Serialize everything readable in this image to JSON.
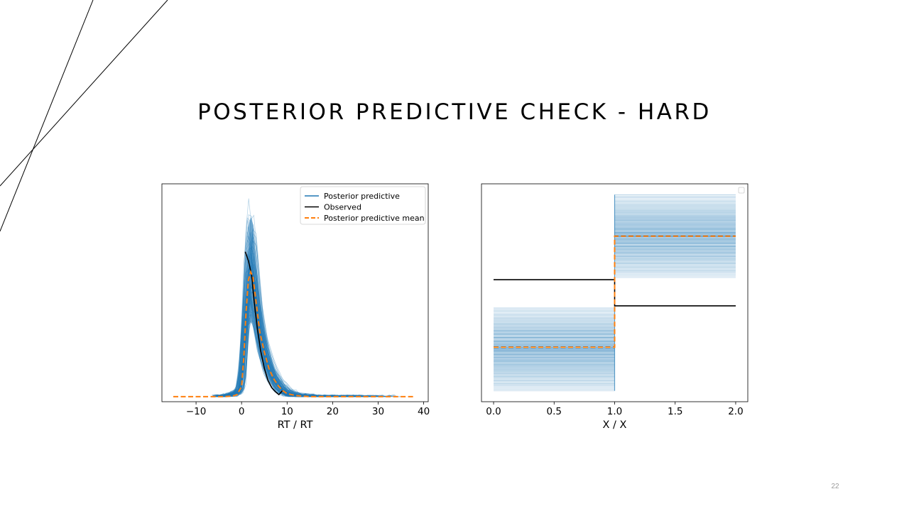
{
  "slide": {
    "title": "POSTERIOR PREDICTIVE CHECK - HARD",
    "number": "22"
  },
  "colors": {
    "posterior_predictive": "#1f77b4",
    "observed": "#000000",
    "posterior_predictive_mean": "#ff7f0e",
    "decorative_lines": "#000000"
  },
  "chart_data": [
    {
      "type": "line",
      "description_source": "posterior predictive check, continuous variable RT",
      "title": "",
      "xlabel": "RT / RT",
      "ylabel": "",
      "xlim": [
        -17.5,
        41
      ],
      "ylim": [
        -0.005,
        0.21
      ],
      "xticks": [
        -10,
        0,
        10,
        20,
        30,
        40
      ],
      "xtick_labels": [
        "−10",
        "0",
        "10",
        "20",
        "30",
        "40"
      ],
      "yticks_visible": false,
      "grid": false,
      "legend": {
        "placement": "upper-right",
        "entries": [
          "Posterior predictive",
          "Observed",
          "Posterior predictive mean"
        ]
      },
      "series": [
        {
          "name": "Observed",
          "x": [
            0.8,
            1.5,
            2.2,
            2.8,
            3.5,
            4.2,
            5.0,
            5.8,
            6.6,
            7.4,
            8.2,
            9.0
          ],
          "y": [
            0.143,
            0.134,
            0.12,
            0.092,
            0.066,
            0.045,
            0.028,
            0.016,
            0.009,
            0.005,
            0.002,
            0.006
          ]
        },
        {
          "name": "Posterior predictive mean",
          "x": [
            -15.0,
            -4.0,
            -2.0,
            -1.0,
            0.0,
            0.5,
            1.0,
            1.5,
            2.0,
            2.5,
            3.0,
            3.5,
            4.0,
            5.0,
            6.0,
            7.0,
            8.0,
            9.0,
            10.0,
            12.0,
            15.0,
            20.0,
            30.0,
            38.0
          ],
          "y": [
            0.0,
            0.0,
            0.0005,
            0.002,
            0.01,
            0.04,
            0.085,
            0.115,
            0.123,
            0.118,
            0.1,
            0.082,
            0.064,
            0.044,
            0.028,
            0.018,
            0.011,
            0.006,
            0.003,
            0.001,
            0.0,
            0.0,
            0.0,
            0.0
          ]
        },
        {
          "name": "Posterior predictive",
          "summary": "many overlapping sampled densities forming a band around the mean",
          "peak_x": 2.0,
          "peak_y_range": [
            0.085,
            0.18
          ]
        }
      ]
    },
    {
      "type": "line",
      "description_source": "posterior predictive check, binary variable X",
      "title": "",
      "xlabel": "X / X",
      "ylabel": "",
      "xlim": [
        -0.1,
        2.1
      ],
      "ylim": [
        0.0,
        1.0
      ],
      "xticks": [
        0.0,
        0.5,
        1.0,
        1.5,
        2.0
      ],
      "xtick_labels": [
        "0.0",
        "0.5",
        "1.0",
        "1.5",
        "2.0"
      ],
      "yticks_visible": false,
      "grid": false,
      "legend": {
        "placement": "upper-right",
        "entries": []
      },
      "series": [
        {
          "name": "Observed",
          "x": [
            0.0,
            1.0,
            1.0,
            2.0
          ],
          "y": [
            0.56,
            0.56,
            0.44,
            0.44
          ]
        },
        {
          "name": "Posterior predictive mean",
          "x": [
            0.0,
            1.0,
            1.0,
            2.0
          ],
          "y": [
            0.25,
            0.25,
            0.76,
            0.76
          ]
        },
        {
          "name": "Posterior predictive",
          "summary": "horizontal step lines for sampled datasets",
          "low_segment_x": [
            0.0,
            1.0
          ],
          "low_segment_y_range": [
            0.05,
            0.43
          ],
          "high_segment_x": [
            1.0,
            2.0
          ],
          "high_segment_y_range": [
            0.57,
            0.95
          ]
        }
      ]
    }
  ]
}
